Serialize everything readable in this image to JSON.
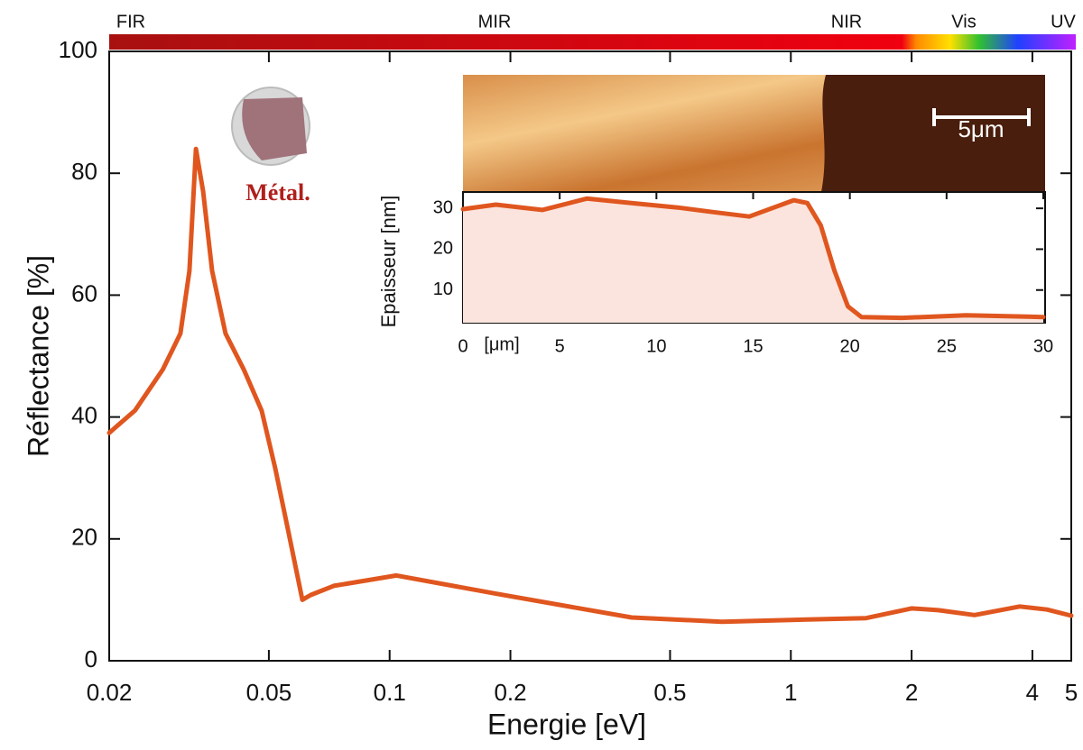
{
  "chart_data": [
    {
      "type": "line",
      "x_label": "Energie [eV]",
      "y_label": "Réflectance [%]",
      "log_x": true,
      "x": [
        0.02,
        0.0232,
        0.0272,
        0.0301,
        0.0317,
        0.0329,
        0.0343,
        0.0361,
        0.039,
        0.0433,
        0.048,
        0.0519,
        0.056,
        0.0606,
        0.0636,
        0.0726,
        0.104,
        0.184,
        0.401,
        0.673,
        1,
        1.54,
        2,
        2.33,
        2.87,
        3.72,
        4.35,
        5
      ],
      "values": [
        37.4,
        41.1,
        47.8,
        53.7,
        64,
        84,
        77,
        64,
        53.7,
        47.8,
        41,
        31.5,
        21,
        10,
        10.8,
        12.3,
        14,
        11,
        7.1,
        6.4,
        6.7,
        7,
        8.6,
        8.3,
        7.5,
        8.9,
        8.4,
        7.4
      ],
      "color": "#e0561f",
      "xlim": [
        0.02,
        5
      ],
      "xticks": [
        0.02,
        0.05,
        0.1,
        0.2,
        0.5,
        1,
        2,
        4,
        5
      ],
      "ylim": [
        0,
        100
      ],
      "yticks": [
        0,
        20,
        40,
        60,
        80,
        100
      ]
    },
    {
      "type": "area",
      "x_label": "[μm]",
      "y_label": "Epaisseur [nm]",
      "log_x": false,
      "x": [
        0,
        1.7,
        4.1,
        6.4,
        8.7,
        11.1,
        12.9,
        14.8,
        17.1,
        17.8,
        18.5,
        19.2,
        19.9,
        20.6,
        22.7,
        26,
        30
      ],
      "values": [
        29.8,
        30.9,
        29.6,
        32.4,
        31.3,
        30.2,
        29.1,
        28,
        32,
        31.3,
        25.8,
        14.8,
        6,
        3.4,
        3.2,
        3.8,
        3.4
      ],
      "color": "#e0561f",
      "fill_color": "#fbe4dd",
      "xlim": [
        0,
        30
      ],
      "xticks": [
        0,
        5,
        10,
        15,
        20,
        25,
        30
      ],
      "ylim": [
        2,
        34
      ],
      "yticks": [
        10,
        20,
        30
      ]
    }
  ],
  "spectral_regions": [
    "FIR",
    "MIR",
    "NIR",
    "Vis",
    "UV"
  ],
  "photo_label": "Métal.",
  "scale_bar": "5μm"
}
